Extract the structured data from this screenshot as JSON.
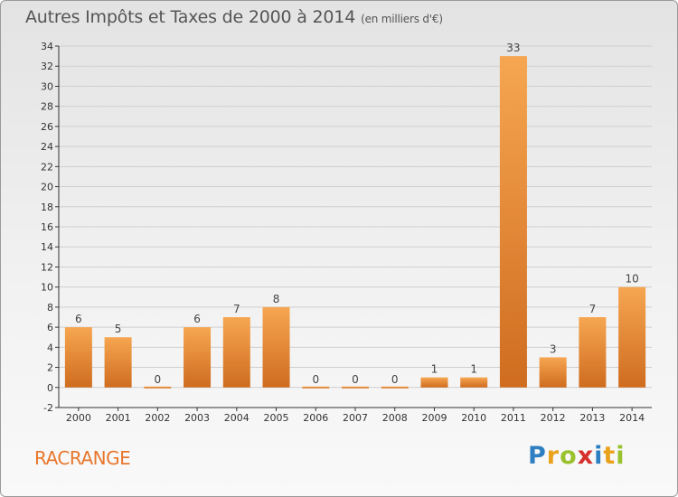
{
  "header": {
    "title": "Autres Impôts et Taxes de 2000 à 2014",
    "unit": "(en milliers d'€)"
  },
  "footer": {
    "place": "RACRANGE",
    "logo_letters": [
      "P",
      "r",
      "o",
      "x",
      "i",
      "t",
      "i"
    ],
    "logo_colors": [
      "#2d7fc1",
      "#e9a21c",
      "#9ac22f",
      "#d6312c",
      "#2d7fc1",
      "#e9a21c",
      "#9ac22f"
    ]
  },
  "colors": {
    "bar_light": "#f6a651",
    "bar_dark": "#cf6c1f",
    "grid": "#cfcfcf",
    "place": "#e8772e"
  },
  "chart_data": {
    "type": "bar",
    "title": "Autres Impôts et Taxes de 2000 à 2014",
    "subtitle": "(en milliers d'€)",
    "categories": [
      "2000",
      "2001",
      "2002",
      "2003",
      "2004",
      "2005",
      "2006",
      "2007",
      "2008",
      "2009",
      "2010",
      "2011",
      "2012",
      "2013",
      "2014"
    ],
    "values": [
      6,
      5,
      0,
      6,
      7,
      8,
      0,
      0,
      0,
      1,
      1,
      33,
      3,
      7,
      10
    ],
    "ylim": [
      -2,
      34
    ],
    "yticks": [
      -2,
      0,
      2,
      4,
      6,
      8,
      10,
      12,
      14,
      16,
      18,
      20,
      22,
      24,
      26,
      28,
      30,
      32,
      34
    ],
    "grid": true,
    "legend": "none"
  }
}
